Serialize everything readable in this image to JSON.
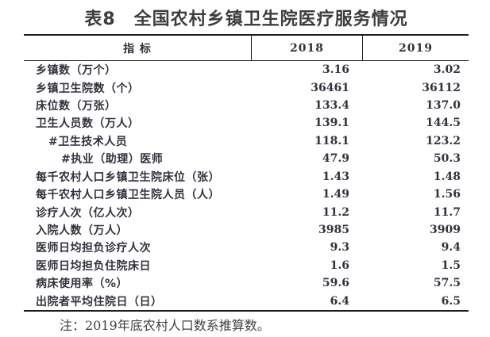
{
  "title": "表8　全国农村乡镇卫生院医疗服务情况",
  "table": {
    "header": {
      "indicator": "指 标",
      "col2018": "2018",
      "col2019": "2019"
    },
    "rows": [
      {
        "label": "乡镇数（万个）",
        "indent": 0,
        "v2018": "3.16",
        "v2019": "3.02"
      },
      {
        "label": "乡镇卫生院数（个）",
        "indent": 0,
        "v2018": "36461",
        "v2019": "36112"
      },
      {
        "label": "床位数（万张）",
        "indent": 0,
        "v2018": "133.4",
        "v2019": "137.0"
      },
      {
        "label": "卫生人员数（万人）",
        "indent": 0,
        "v2018": "139.1",
        "v2019": "144.5"
      },
      {
        "label": "#卫生技术人员",
        "indent": 1,
        "v2018": "118.1",
        "v2019": "123.2"
      },
      {
        "label": "#执业（助理）医师",
        "indent": 2,
        "v2018": "47.9",
        "v2019": "50.3"
      },
      {
        "label": "每千农村人口乡镇卫生院床位（张）",
        "indent": 0,
        "v2018": "1.43",
        "v2019": "1.48"
      },
      {
        "label": "每千农村人口乡镇卫生院人员（人）",
        "indent": 0,
        "v2018": "1.49",
        "v2019": "1.56"
      },
      {
        "label": "诊疗人次（亿人次）",
        "indent": 0,
        "v2018": "11.2",
        "v2019": "11.7"
      },
      {
        "label": "入院人数（万人）",
        "indent": 0,
        "v2018": "3985",
        "v2019": "3909"
      },
      {
        "label": "医师日均担负诊疗人次",
        "indent": 0,
        "v2018": "9.3",
        "v2019": "9.4"
      },
      {
        "label": "医师日均担负住院床日",
        "indent": 0,
        "v2018": "1.6",
        "v2019": "1.5"
      },
      {
        "label": "病床使用率（%）",
        "indent": 0,
        "v2018": "59.6",
        "v2019": "57.5"
      },
      {
        "label": "出院者平均住院日（日）",
        "indent": 0,
        "v2018": "6.4",
        "v2019": "6.5"
      }
    ]
  },
  "note": "注：2019年底农村人口数系推算数。",
  "colors": {
    "background": "#ffffff",
    "text": "#32323e",
    "title": "#3d3d41",
    "rule": "#1c1c1c",
    "note": "#424242"
  }
}
